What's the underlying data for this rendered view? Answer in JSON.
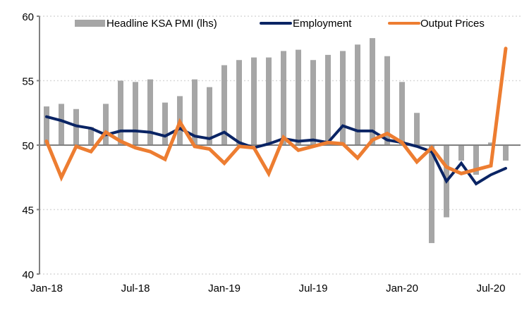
{
  "chart_data": {
    "type": "bar",
    "title": "",
    "xlabel": "",
    "ylabel": "",
    "ylim": [
      40,
      60
    ],
    "yticks": [
      40,
      45,
      50,
      55,
      60
    ],
    "baseline": 50,
    "grid": true,
    "legend_position": "top",
    "categories": [
      "Jan-18",
      "Feb-18",
      "Mar-18",
      "Apr-18",
      "May-18",
      "Jun-18",
      "Jul-18",
      "Aug-18",
      "Sep-18",
      "Oct-18",
      "Nov-18",
      "Dec-18",
      "Jan-19",
      "Feb-19",
      "Mar-19",
      "Apr-19",
      "May-19",
      "Jun-19",
      "Jul-19",
      "Aug-19",
      "Sep-19",
      "Oct-19",
      "Nov-19",
      "Dec-19",
      "Jan-20",
      "Feb-20",
      "Mar-20",
      "Apr-20",
      "May-20",
      "Jun-20",
      "Jul-20",
      "Aug-20"
    ],
    "xtick_labels": [
      "Jan-18",
      "Jul-18",
      "Jan-19",
      "Jul-19",
      "Jan-20",
      "Jul-20"
    ],
    "series": [
      {
        "name": "Headline KSA PMI (lhs)",
        "type": "bar",
        "color": "#a6a6a6",
        "values": [
          53.0,
          53.2,
          52.8,
          51.4,
          53.2,
          55.0,
          54.9,
          55.1,
          53.3,
          53.8,
          55.1,
          54.5,
          56.2,
          56.6,
          56.8,
          56.8,
          57.3,
          57.4,
          56.6,
          57.0,
          57.3,
          57.8,
          58.3,
          56.9,
          54.9,
          52.5,
          42.4,
          44.4,
          48.8,
          47.7,
          50.2,
          48.8
        ]
      },
      {
        "name": "Employment",
        "type": "line",
        "color": "#0a2464",
        "values": [
          52.2,
          51.9,
          51.5,
          51.3,
          50.8,
          51.1,
          51.1,
          51.0,
          50.7,
          51.3,
          50.7,
          50.5,
          51.0,
          50.2,
          49.8,
          50.1,
          50.5,
          50.3,
          50.4,
          50.2,
          51.5,
          51.1,
          51.1,
          50.4,
          50.2,
          49.9,
          49.5,
          47.2,
          48.6,
          47.0,
          47.7,
          48.2
        ]
      },
      {
        "name": "Output Prices",
        "type": "line",
        "color": "#ed7d31",
        "values": [
          50.3,
          47.5,
          49.9,
          49.5,
          51.0,
          50.3,
          49.8,
          49.5,
          48.9,
          51.8,
          49.9,
          49.7,
          48.6,
          49.9,
          49.8,
          47.8,
          50.6,
          49.6,
          49.9,
          50.2,
          50.1,
          49.0,
          50.4,
          50.9,
          50.2,
          48.7,
          49.8,
          48.3,
          47.8,
          48.1,
          48.4,
          57.5
        ]
      }
    ]
  },
  "colors": {
    "axis": "#808080",
    "grid": "#d9d9d9"
  }
}
